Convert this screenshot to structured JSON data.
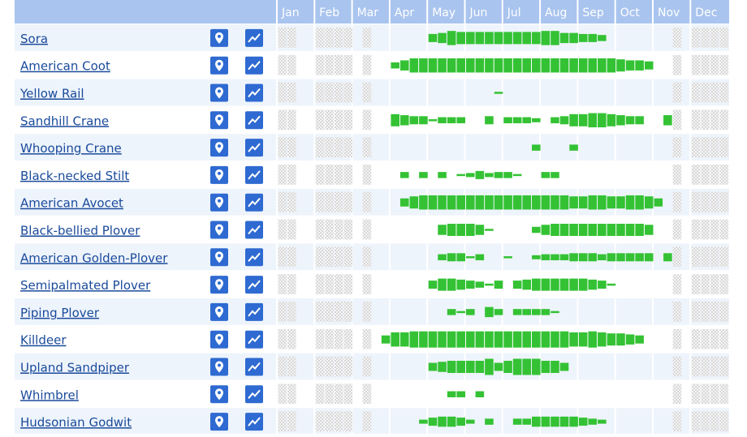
{
  "header": {
    "months": [
      "Jan",
      "Feb",
      "Mar",
      "Apr",
      "May",
      "Jun",
      "Jul",
      "Aug",
      "Sep",
      "Oct",
      "Nov",
      "Dec"
    ]
  },
  "rows": [
    {
      "name": "Sora",
      "weeks": [
        null,
        null,
        0,
        0,
        null,
        null,
        null,
        null,
        0,
        null,
        0,
        0,
        0,
        0,
        0,
        0,
        4,
        5,
        7,
        6,
        6,
        6,
        6,
        6,
        6,
        6,
        6,
        6,
        7,
        7,
        5,
        5,
        4,
        4,
        3,
        0,
        0,
        0,
        0,
        0,
        0,
        0,
        null,
        0,
        null,
        null,
        null,
        null
      ]
    },
    {
      "name": "American Coot",
      "weeks": [
        null,
        null,
        0,
        0,
        null,
        null,
        null,
        null,
        0,
        null,
        0,
        0,
        3,
        5,
        7,
        7,
        7,
        7,
        7,
        7,
        7,
        7,
        7,
        7,
        7,
        7,
        7,
        7,
        7,
        7,
        7,
        7,
        7,
        7,
        7,
        7,
        6,
        5,
        5,
        4,
        0,
        0,
        null,
        0,
        null,
        null,
        null,
        null
      ]
    },
    {
      "name": "Yellow Rail",
      "weeks": [
        null,
        null,
        0,
        0,
        null,
        null,
        null,
        null,
        0,
        null,
        0,
        0,
        0,
        0,
        0,
        0,
        0,
        0,
        0,
        0,
        0,
        0,
        0,
        1,
        0,
        0,
        0,
        0,
        0,
        0,
        0,
        0,
        0,
        0,
        0,
        0,
        0,
        0,
        0,
        0,
        0,
        0,
        null,
        0,
        null,
        null,
        null,
        null
      ]
    },
    {
      "name": "Sandhill Crane",
      "weeks": [
        null,
        null,
        0,
        0,
        null,
        null,
        null,
        null,
        0,
        null,
        0,
        0,
        6,
        5,
        4,
        4,
        1,
        3,
        3,
        3,
        0,
        0,
        4,
        0,
        3,
        3,
        3,
        2,
        0,
        3,
        4,
        6,
        6,
        7,
        7,
        6,
        5,
        4,
        4,
        0,
        0,
        5,
        null,
        0,
        null,
        null,
        null,
        null
      ]
    },
    {
      "name": "Whooping Crane",
      "weeks": [
        null,
        null,
        0,
        0,
        null,
        null,
        null,
        null,
        0,
        null,
        0,
        0,
        0,
        0,
        0,
        0,
        0,
        0,
        0,
        0,
        0,
        0,
        0,
        0,
        0,
        0,
        0,
        3,
        0,
        0,
        0,
        3,
        0,
        0,
        0,
        0,
        0,
        0,
        0,
        0,
        0,
        0,
        null,
        0,
        null,
        null,
        null,
        null
      ]
    },
    {
      "name": "Black-necked Stilt",
      "weeks": [
        null,
        null,
        0,
        0,
        null,
        null,
        null,
        null,
        0,
        null,
        0,
        0,
        0,
        3,
        0,
        3,
        0,
        3,
        0,
        1,
        2,
        4,
        2,
        3,
        3,
        1,
        0,
        0,
        3,
        3,
        0,
        0,
        0,
        0,
        0,
        0,
        0,
        0,
        0,
        0,
        0,
        0,
        null,
        0,
        null,
        null,
        null,
        null
      ]
    },
    {
      "name": "American Avocet",
      "weeks": [
        null,
        null,
        0,
        0,
        null,
        null,
        null,
        null,
        0,
        null,
        0,
        0,
        0,
        4,
        6,
        7,
        7,
        7,
        7,
        7,
        7,
        7,
        7,
        7,
        7,
        7,
        7,
        7,
        7,
        7,
        7,
        6,
        6,
        7,
        7,
        6,
        6,
        7,
        7,
        6,
        4,
        0,
        null,
        0,
        null,
        null,
        null,
        null
      ]
    },
    {
      "name": "Black-bellied Plover",
      "weeks": [
        null,
        null,
        0,
        0,
        null,
        null,
        null,
        null,
        0,
        null,
        0,
        0,
        0,
        0,
        0,
        0,
        0,
        5,
        6,
        6,
        6,
        5,
        1,
        0,
        0,
        0,
        0,
        3,
        5,
        6,
        6,
        6,
        6,
        6,
        6,
        6,
        6,
        6,
        6,
        5,
        0,
        0,
        null,
        0,
        null,
        null,
        null,
        null
      ]
    },
    {
      "name": "American Golden-Plover",
      "weeks": [
        null,
        null,
        0,
        0,
        null,
        null,
        null,
        null,
        0,
        null,
        0,
        0,
        0,
        0,
        0,
        0,
        0,
        3,
        4,
        4,
        1,
        3,
        0,
        0,
        1,
        0,
        0,
        2,
        3,
        3,
        3,
        4,
        4,
        4,
        3,
        4,
        4,
        4,
        4,
        4,
        0,
        4,
        null,
        0,
        null,
        null,
        null,
        null
      ]
    },
    {
      "name": "Semipalmated Plover",
      "weeks": [
        null,
        null,
        0,
        0,
        null,
        null,
        null,
        null,
        0,
        null,
        0,
        0,
        0,
        0,
        0,
        0,
        4,
        6,
        6,
        5,
        4,
        3,
        1,
        4,
        0,
        4,
        5,
        6,
        6,
        6,
        6,
        6,
        6,
        5,
        4,
        1,
        0,
        0,
        0,
        0,
        0,
        0,
        null,
        0,
        null,
        null,
        null,
        null
      ]
    },
    {
      "name": "Piping Plover",
      "weeks": [
        null,
        null,
        0,
        0,
        null,
        null,
        null,
        null,
        0,
        null,
        0,
        0,
        0,
        0,
        0,
        0,
        0,
        0,
        3,
        1,
        3,
        0,
        5,
        3,
        0,
        3,
        3,
        3,
        3,
        1,
        0,
        0,
        0,
        0,
        0,
        0,
        0,
        0,
        0,
        0,
        0,
        0,
        null,
        0,
        null,
        null,
        null,
        null
      ]
    },
    {
      "name": "Killdeer",
      "weeks": [
        null,
        null,
        0,
        0,
        null,
        null,
        null,
        null,
        0,
        null,
        0,
        4,
        7,
        7,
        8,
        8,
        8,
        8,
        8,
        8,
        8,
        8,
        8,
        8,
        8,
        8,
        8,
        8,
        8,
        8,
        8,
        7,
        7,
        8,
        7,
        6,
        6,
        5,
        4,
        0,
        0,
        0,
        null,
        0,
        null,
        null,
        null,
        null
      ]
    },
    {
      "name": "Upland Sandpiper",
      "weeks": [
        null,
        null,
        0,
        0,
        null,
        null,
        null,
        null,
        0,
        null,
        0,
        0,
        0,
        0,
        0,
        0,
        4,
        5,
        6,
        6,
        6,
        6,
        8,
        4,
        6,
        8,
        8,
        8,
        6,
        6,
        4,
        0,
        0,
        0,
        0,
        0,
        0,
        0,
        0,
        0,
        0,
        0,
        null,
        0,
        null,
        null,
        null,
        null
      ]
    },
    {
      "name": "Whimbrel",
      "weeks": [
        null,
        null,
        0,
        0,
        null,
        null,
        null,
        null,
        0,
        null,
        0,
        0,
        0,
        0,
        0,
        0,
        0,
        0,
        3,
        3,
        0,
        3,
        0,
        0,
        0,
        0,
        0,
        0,
        0,
        0,
        0,
        0,
        0,
        0,
        0,
        0,
        0,
        0,
        0,
        0,
        0,
        0,
        null,
        0,
        null,
        null,
        null,
        null
      ]
    },
    {
      "name": "Hudsonian Godwit",
      "weeks": [
        null,
        null,
        0,
        0,
        null,
        null,
        null,
        null,
        0,
        null,
        0,
        0,
        0,
        0,
        0,
        2,
        4,
        5,
        5,
        4,
        2,
        0,
        3,
        0,
        0,
        3,
        3,
        5,
        5,
        5,
        5,
        5,
        4,
        3,
        2,
        0,
        0,
        0,
        0,
        0,
        0,
        0,
        null,
        0,
        null,
        null,
        null,
        null
      ]
    }
  ]
}
